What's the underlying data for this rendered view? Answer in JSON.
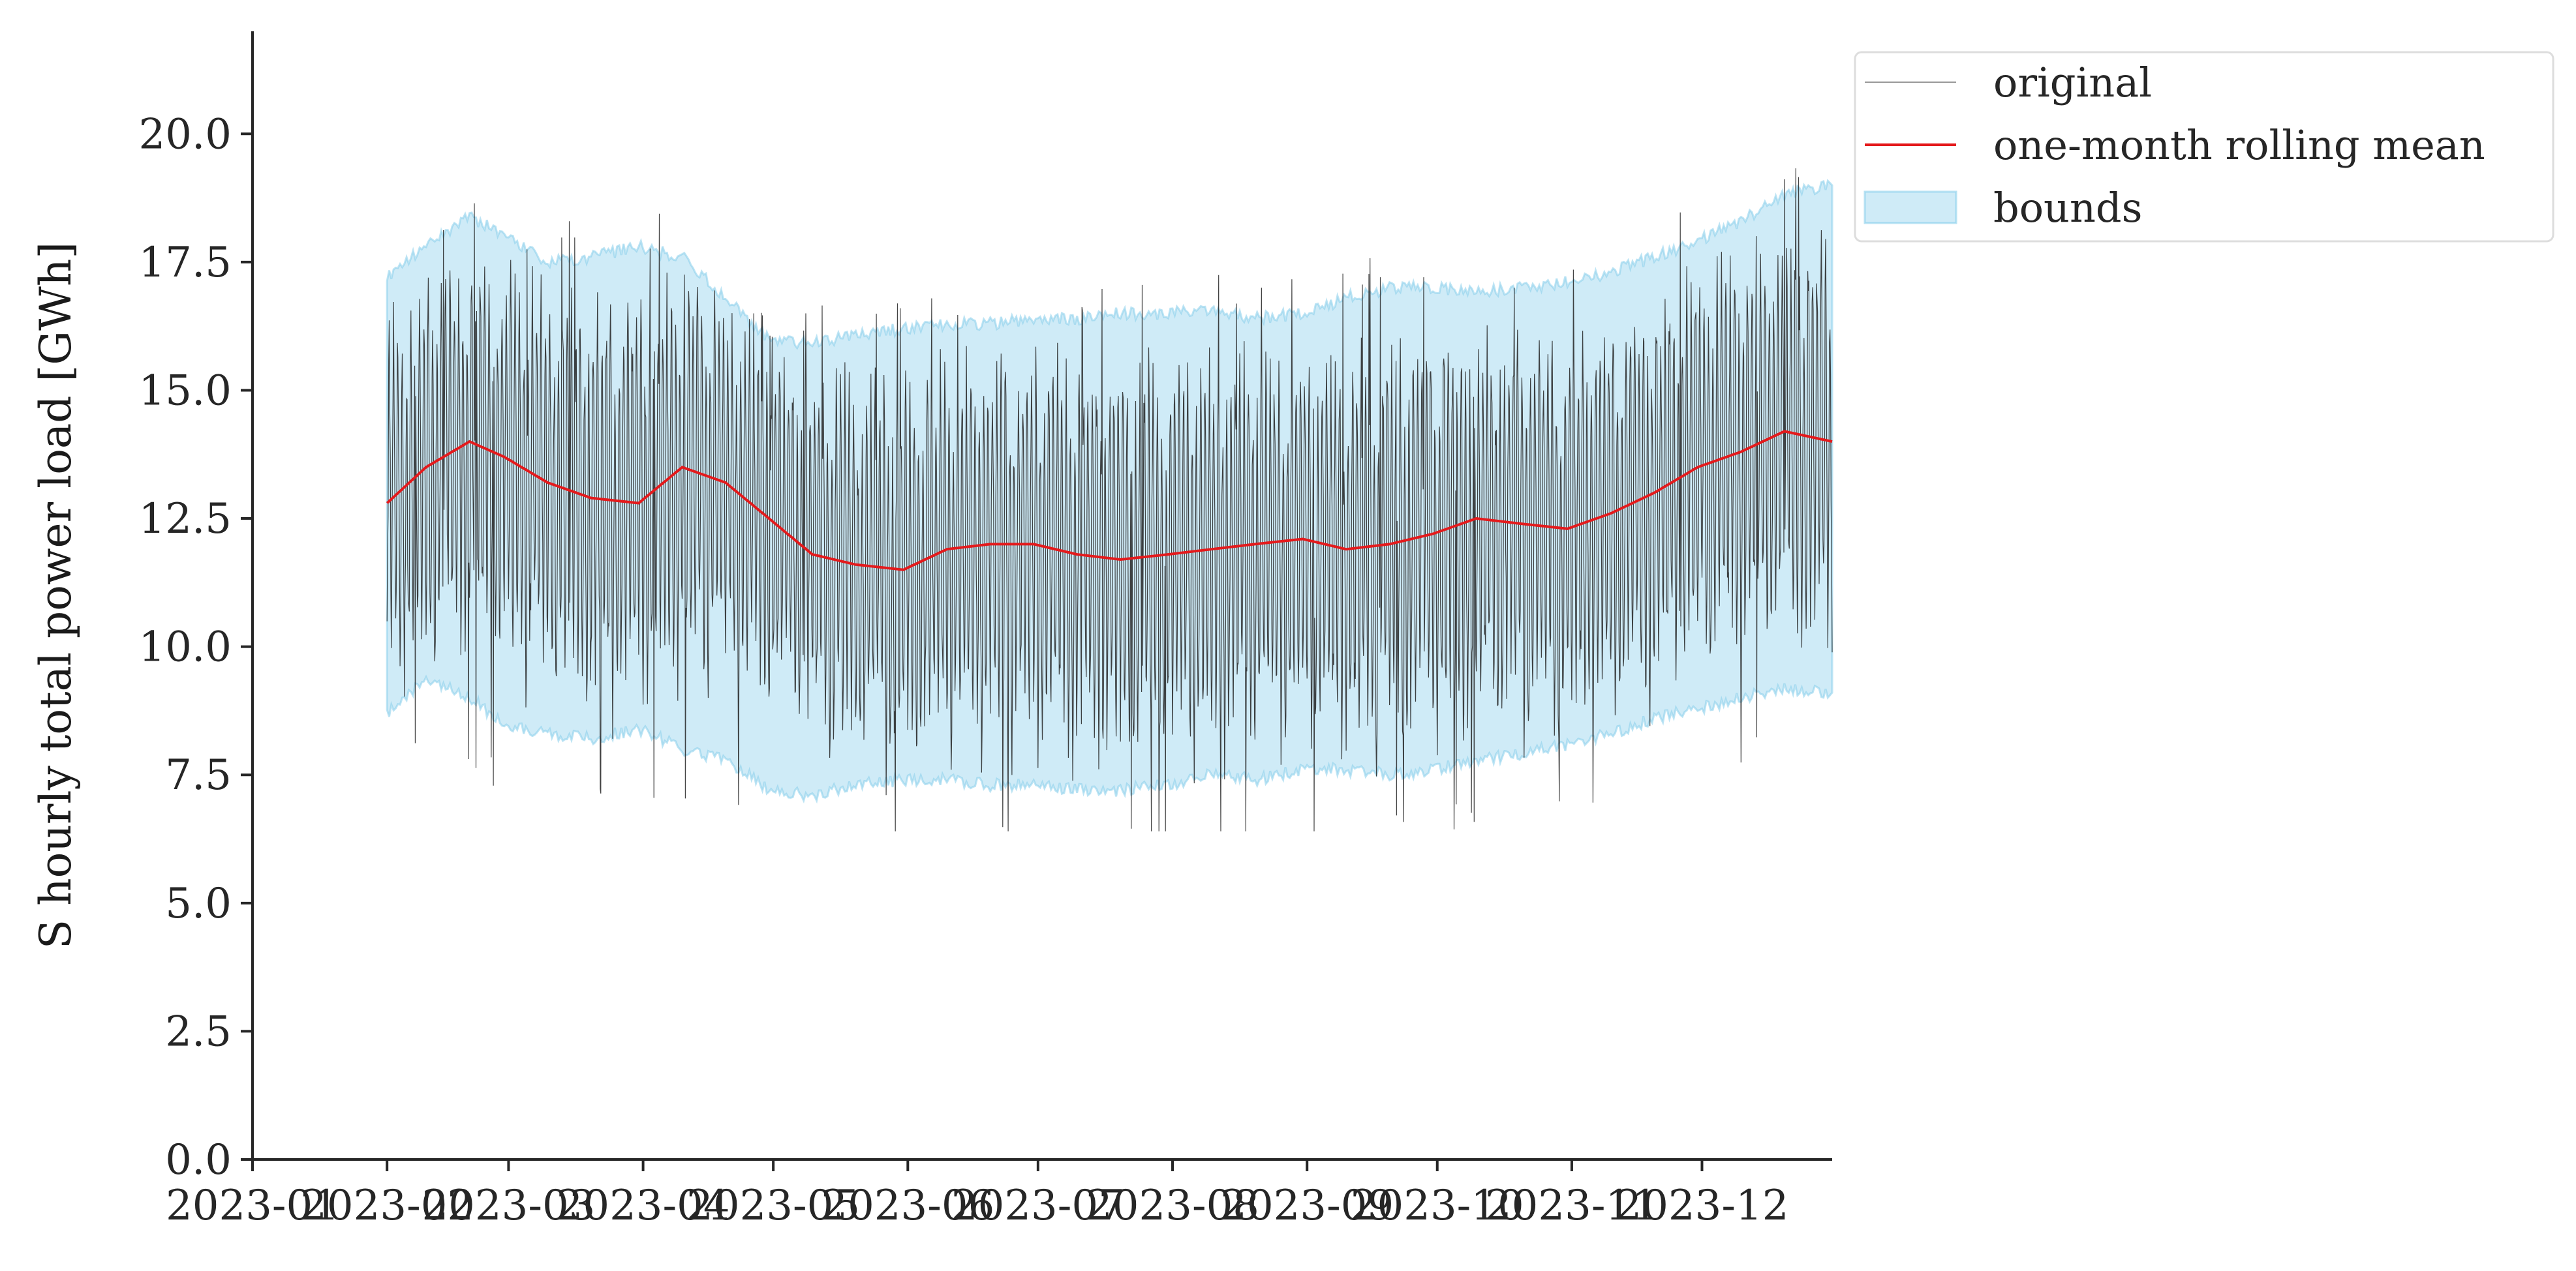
{
  "chart_data": {
    "type": "line",
    "title": "",
    "xlabel": "",
    "ylabel": "S hourly total power load [GWh]",
    "x_range": [
      "2023-01",
      "2023-12-31"
    ],
    "ylim": [
      0,
      22
    ],
    "y_ticks": [
      "0.0",
      "2.5",
      "5.0",
      "7.5",
      "10.0",
      "12.5",
      "15.0",
      "17.5",
      "20.0"
    ],
    "x_ticks": [
      "2023-01",
      "2023-02",
      "2023-03",
      "2023-04",
      "2023-05",
      "2023-06",
      "2023-07",
      "2023-08",
      "2023-09",
      "2023-10",
      "2023-11",
      "2023-12"
    ],
    "grid": false,
    "legend_position": "outside-top-right",
    "colors": {
      "original": "#222222",
      "rolling_mean": "#e41a1c",
      "bounds_fill": "#87ceeb",
      "axis": "#262626"
    },
    "legend": [
      "original",
      "one-month rolling mean",
      "bounds"
    ],
    "series": [
      {
        "name": "one-month rolling mean",
        "x": [
          "2023-02-01",
          "2023-02-10",
          "2023-02-20",
          "2023-02-28",
          "2023-03-10",
          "2023-03-20",
          "2023-03-31",
          "2023-04-10",
          "2023-04-20",
          "2023-04-30",
          "2023-05-10",
          "2023-05-20",
          "2023-05-31",
          "2023-06-10",
          "2023-06-20",
          "2023-06-30",
          "2023-07-10",
          "2023-07-20",
          "2023-07-31",
          "2023-08-10",
          "2023-08-20",
          "2023-08-31",
          "2023-09-10",
          "2023-09-20",
          "2023-09-30",
          "2023-10-10",
          "2023-10-20",
          "2023-10-31",
          "2023-11-10",
          "2023-11-20",
          "2023-11-30",
          "2023-12-10",
          "2023-12-20",
          "2023-12-31"
        ],
        "values": [
          12.8,
          13.5,
          14.0,
          13.7,
          13.2,
          12.9,
          12.8,
          13.5,
          13.2,
          12.5,
          11.8,
          11.6,
          11.5,
          11.9,
          12.0,
          12.0,
          11.8,
          11.7,
          11.8,
          11.9,
          12.0,
          12.1,
          11.9,
          12.0,
          12.2,
          12.5,
          12.4,
          12.3,
          12.6,
          13.0,
          13.5,
          13.8,
          14.2,
          14.0
        ]
      },
      {
        "name": "bounds",
        "x": [
          "2023-02-01",
          "2023-02-10",
          "2023-02-20",
          "2023-02-28",
          "2023-03-10",
          "2023-03-20",
          "2023-03-31",
          "2023-04-10",
          "2023-04-20",
          "2023-04-30",
          "2023-05-10",
          "2023-05-20",
          "2023-05-31",
          "2023-06-10",
          "2023-06-20",
          "2023-06-30",
          "2023-07-10",
          "2023-07-20",
          "2023-07-31",
          "2023-08-10",
          "2023-08-20",
          "2023-08-31",
          "2023-09-10",
          "2023-09-20",
          "2023-09-30",
          "2023-10-10",
          "2023-10-20",
          "2023-10-31",
          "2023-11-10",
          "2023-11-20",
          "2023-11-30",
          "2023-12-10",
          "2023-12-20",
          "2023-12-31"
        ],
        "upper": [
          17.2,
          17.8,
          18.4,
          18.0,
          17.5,
          17.6,
          17.8,
          17.6,
          16.8,
          16.0,
          15.9,
          16.1,
          16.2,
          16.3,
          16.3,
          16.4,
          16.4,
          16.5,
          16.5,
          16.6,
          16.4,
          16.5,
          16.8,
          17.0,
          17.0,
          16.9,
          17.0,
          17.1,
          17.3,
          17.6,
          17.9,
          18.3,
          18.8,
          19.0
        ],
        "lower": [
          8.7,
          9.4,
          9.0,
          8.5,
          8.3,
          8.2,
          8.4,
          8.0,
          7.8,
          7.2,
          7.1,
          7.3,
          7.4,
          7.4,
          7.3,
          7.3,
          7.2,
          7.2,
          7.3,
          7.5,
          7.4,
          7.6,
          7.6,
          7.5,
          7.6,
          7.8,
          7.9,
          8.1,
          8.3,
          8.6,
          8.8,
          9.0,
          9.2,
          9.1
        ]
      },
      {
        "name": "original",
        "x_range": [
          "2023-02-01",
          "2023-12-31"
        ],
        "ylim_observed": [
          6.4,
          20.1
        ],
        "note_values": "hourly series with strong daily/weekly oscillation between approx. lower and upper bounds"
      }
    ]
  }
}
